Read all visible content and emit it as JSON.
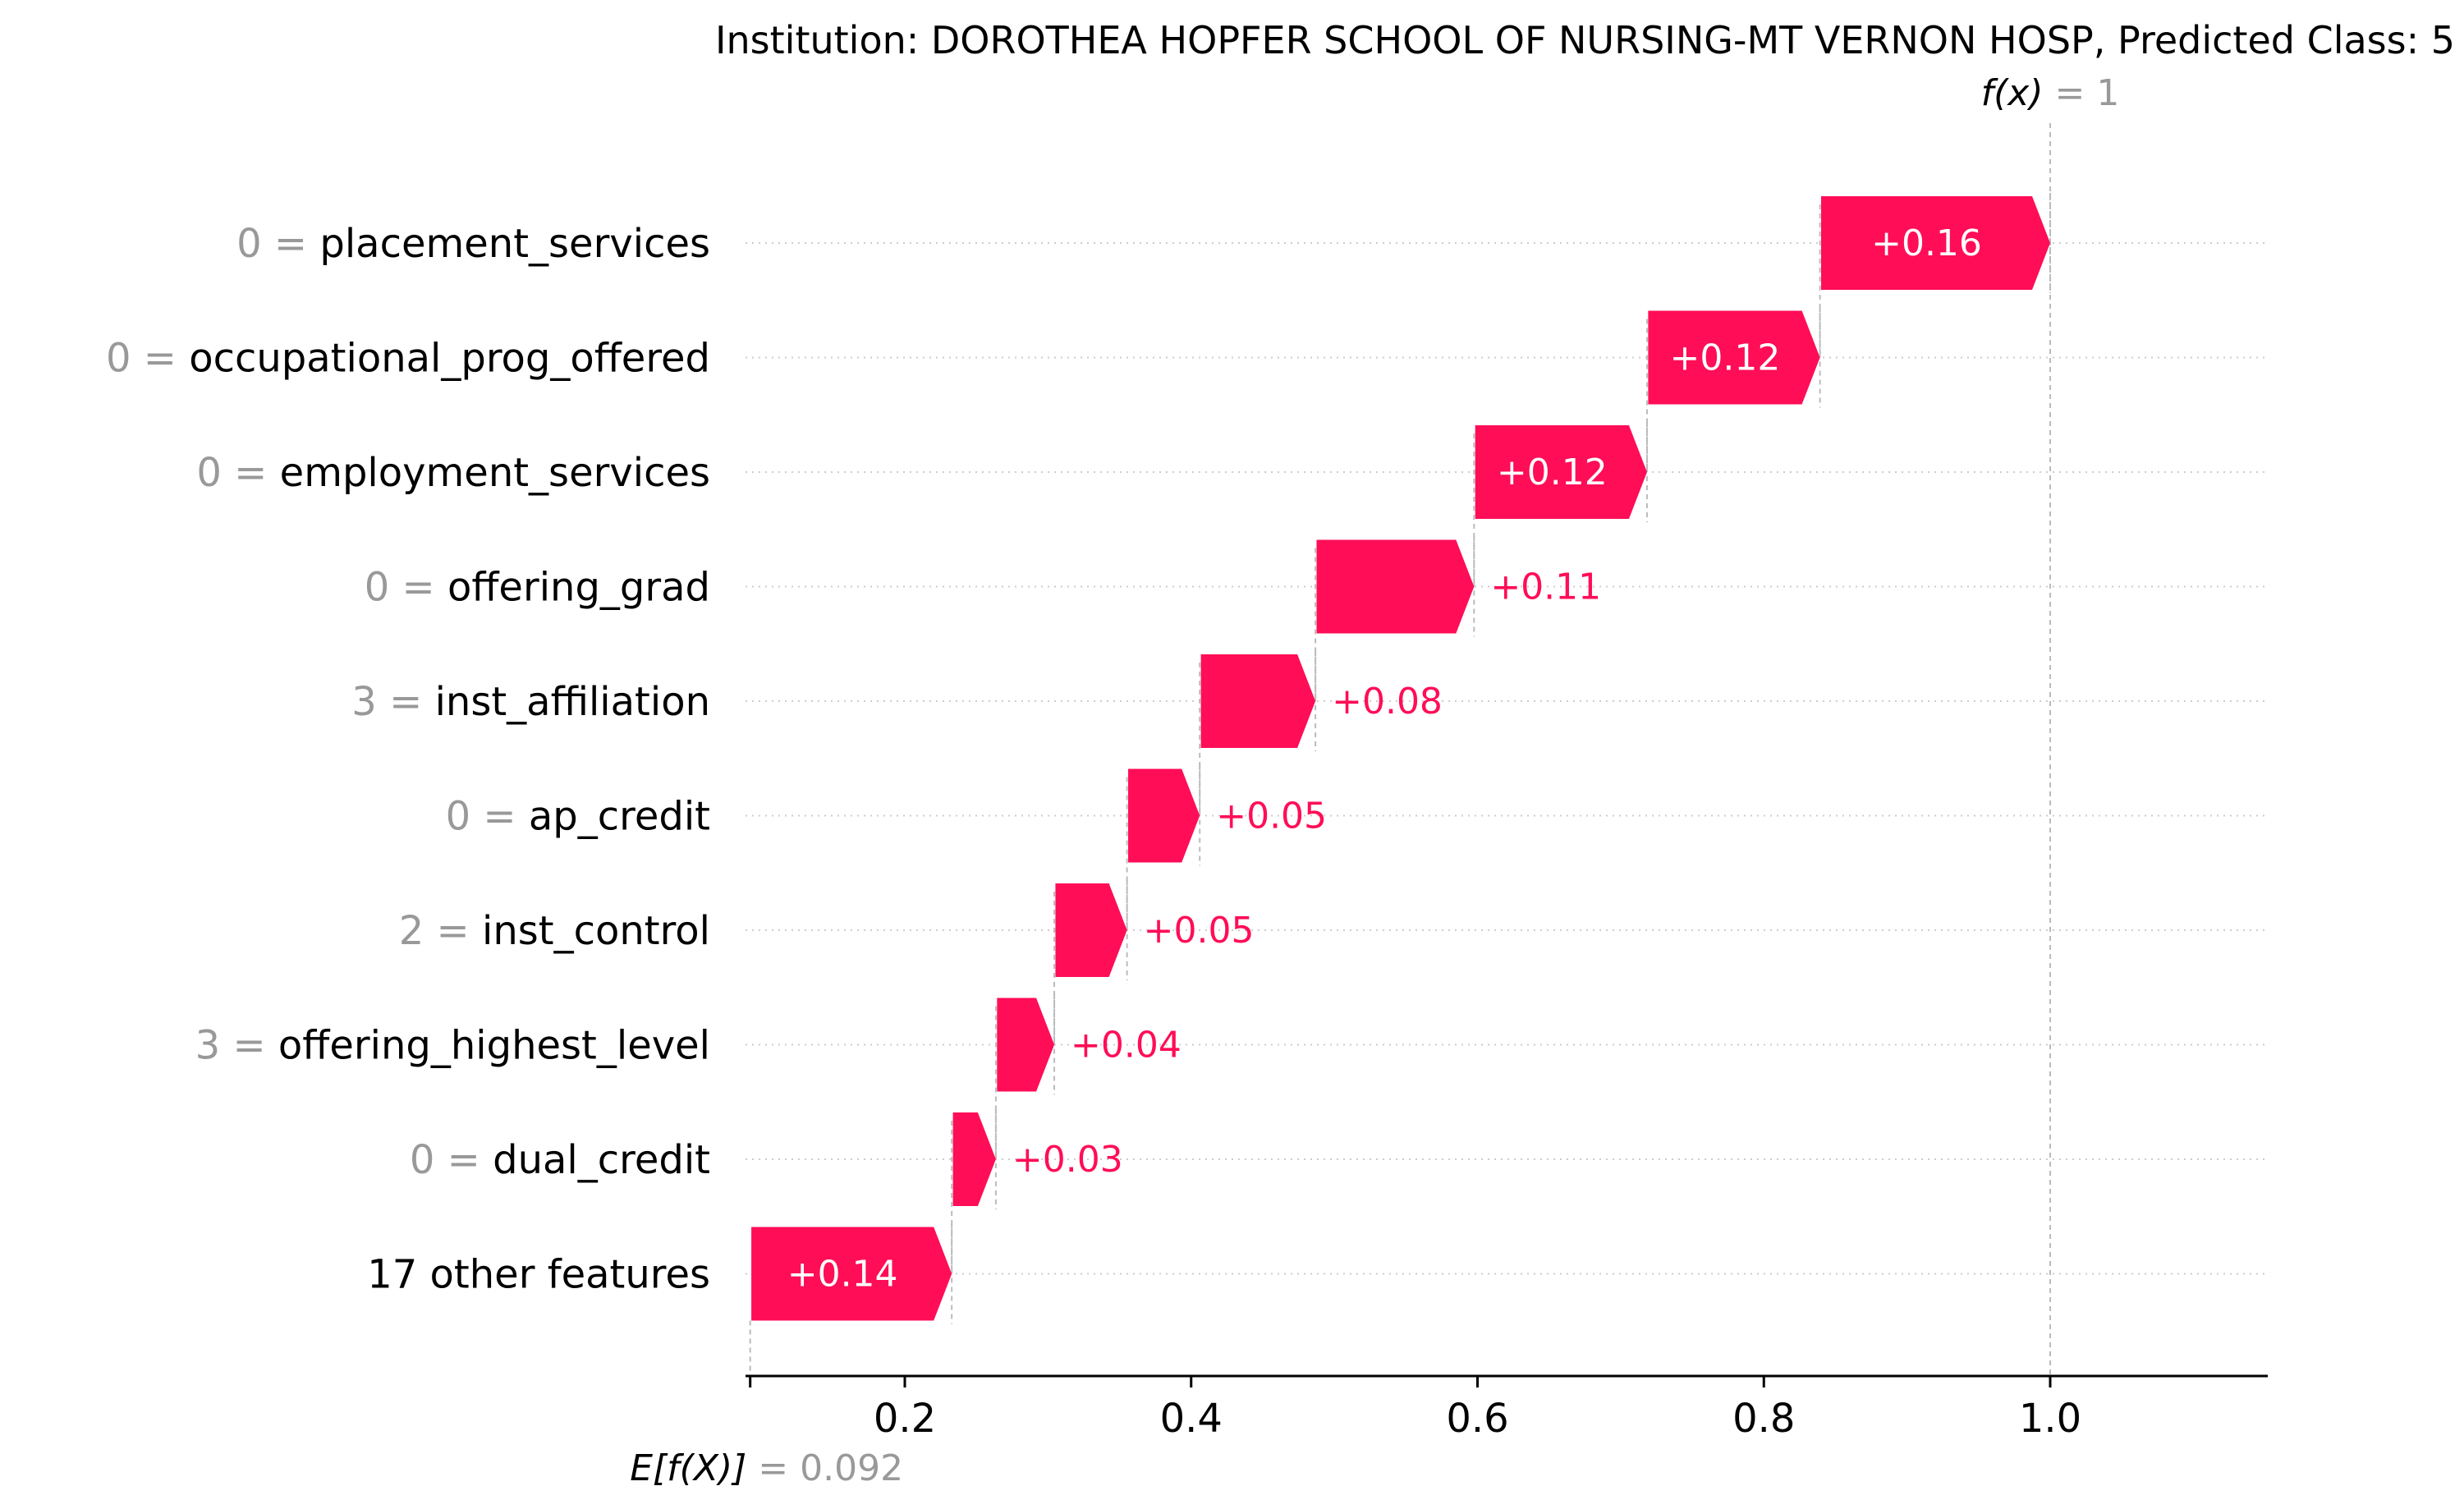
{
  "chart_data": {
    "type": "waterfall",
    "title": "Institution: DOROTHEA HOPFER SCHOOL OF NURSING-MT VERNON HOSP, Predicted Class: 5",
    "base_value": 0.092,
    "base_label": {
      "expr": "E[f(X)]",
      "eq": " = ",
      "value": "0.092"
    },
    "output_value": 1,
    "output_label": {
      "expr": "f(x)",
      "eq": " = ",
      "value": "1"
    },
    "xlim": [
      0.092,
      1.15
    ],
    "xticks": [
      0.2,
      0.4,
      0.6,
      0.8,
      1.0
    ],
    "xtick_labels": [
      "0.2",
      "0.4",
      "0.6",
      "0.8",
      "1.0"
    ],
    "grid": "horizontal dotted",
    "features": [
      {
        "value": "0",
        "name": "placement_services",
        "contribution": 0.16,
        "label": "+0.16"
      },
      {
        "value": "0",
        "name": "occupational_prog_offered",
        "contribution": 0.12,
        "label": "+0.12"
      },
      {
        "value": "0",
        "name": "employment_services",
        "contribution": 0.12,
        "label": "+0.12"
      },
      {
        "value": "0",
        "name": "offering_grad",
        "contribution": 0.11,
        "label": "+0.11"
      },
      {
        "value": "3",
        "name": "inst_affiliation",
        "contribution": 0.08,
        "label": "+0.08"
      },
      {
        "value": "0",
        "name": "ap_credit",
        "contribution": 0.05,
        "label": "+0.05"
      },
      {
        "value": "2",
        "name": "inst_control",
        "contribution": 0.05,
        "label": "+0.05"
      },
      {
        "value": "3",
        "name": "offering_highest_level",
        "contribution": 0.04,
        "label": "+0.04"
      },
      {
        "value": "0",
        "name": "dual_credit",
        "contribution": 0.03,
        "label": "+0.03"
      },
      {
        "value": "",
        "name": "17 other features",
        "contribution": 0.14,
        "label": "+0.14"
      }
    ],
    "colors": {
      "positive": "#ff0d57",
      "value_gray": "#999999",
      "text": "#000000",
      "guide": "#bbbbbb"
    }
  }
}
